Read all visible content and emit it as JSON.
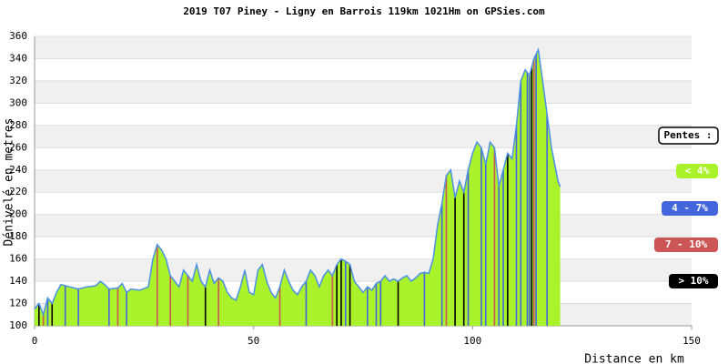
{
  "chart_data": {
    "type": "area",
    "title": "2019 T07 Piney - Ligny en Barrois 119km 1021Hm on GPSies.com",
    "xlabel": "Distance en km",
    "ylabel": "Dénivelé en metres",
    "x": [
      0,
      1,
      2,
      3,
      4,
      5,
      6,
      8,
      10,
      12,
      14,
      15,
      16,
      17,
      19,
      20,
      21,
      22,
      24,
      26,
      27,
      28,
      29,
      30,
      31,
      32,
      33,
      34,
      35,
      36,
      37,
      38,
      39,
      40,
      41,
      42,
      43,
      44,
      45,
      46,
      47,
      48,
      49,
      50,
      51,
      52,
      53,
      54,
      55,
      56,
      57,
      58,
      59,
      60,
      61,
      62,
      63,
      64,
      65,
      66,
      67,
      68,
      69,
      70,
      71,
      72,
      73,
      74,
      75,
      76,
      77,
      78,
      79,
      80,
      81,
      82,
      83,
      84,
      85,
      86,
      87,
      88,
      89,
      90,
      91,
      92,
      93,
      94,
      95,
      96,
      97,
      98,
      99,
      100,
      101,
      102,
      103,
      104,
      105,
      106,
      107,
      108,
      109,
      110,
      111,
      112,
      113,
      114,
      115,
      116,
      117,
      118,
      119,
      119.5,
      120
    ],
    "values": [
      115,
      120,
      110,
      125,
      120,
      130,
      137,
      135,
      133,
      135,
      136,
      140,
      137,
      133,
      134,
      138,
      130,
      133,
      132,
      135,
      160,
      173,
      168,
      160,
      145,
      140,
      135,
      150,
      145,
      140,
      155,
      140,
      135,
      150,
      138,
      143,
      140,
      130,
      125,
      123,
      135,
      150,
      130,
      128,
      150,
      155,
      140,
      130,
      125,
      135,
      150,
      140,
      132,
      128,
      135,
      140,
      150,
      145,
      135,
      145,
      150,
      145,
      155,
      160,
      158,
      155,
      140,
      135,
      130,
      135,
      132,
      138,
      140,
      145,
      140,
      142,
      140,
      143,
      145,
      140,
      143,
      147,
      148,
      147,
      160,
      190,
      210,
      235,
      240,
      215,
      230,
      220,
      240,
      255,
      265,
      260,
      245,
      265,
      260,
      225,
      240,
      255,
      250,
      280,
      320,
      330,
      325,
      340,
      348,
      320,
      290,
      260,
      240,
      230,
      225
    ],
    "fill_color": "#aaf22a",
    "line_color": "#4a90e8",
    "xlim": [
      0,
      150
    ],
    "ylim": [
      100,
      360
    ],
    "xticks": [
      0,
      50,
      100,
      150
    ],
    "yticks": [
      100,
      120,
      140,
      160,
      180,
      200,
      220,
      240,
      260,
      280,
      300,
      320,
      340,
      360
    ],
    "grid": true,
    "legend": {
      "title": "Pentes :",
      "items": [
        {
          "name": "< 4%",
          "color": "#aaf22a",
          "x": []
        },
        {
          "name": "4 - 7%",
          "color": "#4466dd",
          "x": [
            3,
            7,
            10,
            17,
            21,
            62,
            71,
            76,
            78,
            79,
            89,
            93,
            99,
            102,
            103,
            106,
            107,
            110,
            111,
            112.5,
            113,
            114.5,
            117
          ]
        },
        {
          "name": "7 - 10%",
          "color": "#cc5555",
          "x": [
            2,
            19,
            28,
            31,
            35,
            42,
            56,
            68,
            94,
            105,
            114
          ]
        },
        {
          "name": "> 10%",
          "color": "#000000",
          "x": [
            1,
            4,
            39,
            69,
            70,
            72,
            83,
            96,
            98,
            108,
            113.5
          ]
        }
      ]
    }
  }
}
